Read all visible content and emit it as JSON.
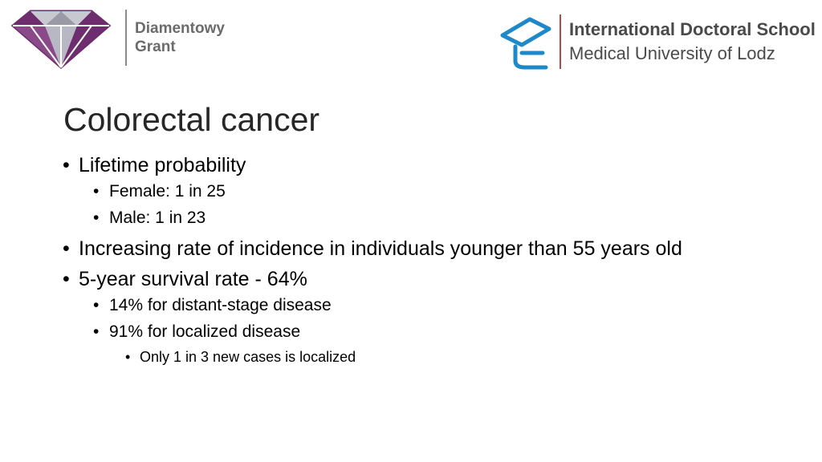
{
  "logos": {
    "left": {
      "icon": "diamond-logo-icon",
      "brand": "Diamentowy\nGrant"
    },
    "right": {
      "icon": "doctoral-school-cap-icon",
      "line1": "International Doctoral School",
      "line2": "Medical University of Lodz"
    },
    "colors": {
      "diamond_purple": "#6e2d6e",
      "diamond_gray": "#9a9aa6",
      "cap_blue": "#1e88c8",
      "divider_red": "#b04a4a"
    }
  },
  "slide": {
    "title": "Colorectal cancer",
    "bullets": [
      {
        "text": "Lifetime probability",
        "children": [
          {
            "text": "Female: 1 in 25"
          },
          {
            "text": "Male: 1 in 23"
          }
        ]
      },
      {
        "text": "Increasing rate of incidence in individuals younger than 55 years old"
      },
      {
        "text": "5-year survival rate - 64%",
        "children": [
          {
            "text": "14% for distant-stage disease"
          },
          {
            "text": "91% for localized disease",
            "children": [
              {
                "text": "Only 1 in 3 new cases is localized"
              }
            ]
          }
        ]
      }
    ]
  }
}
